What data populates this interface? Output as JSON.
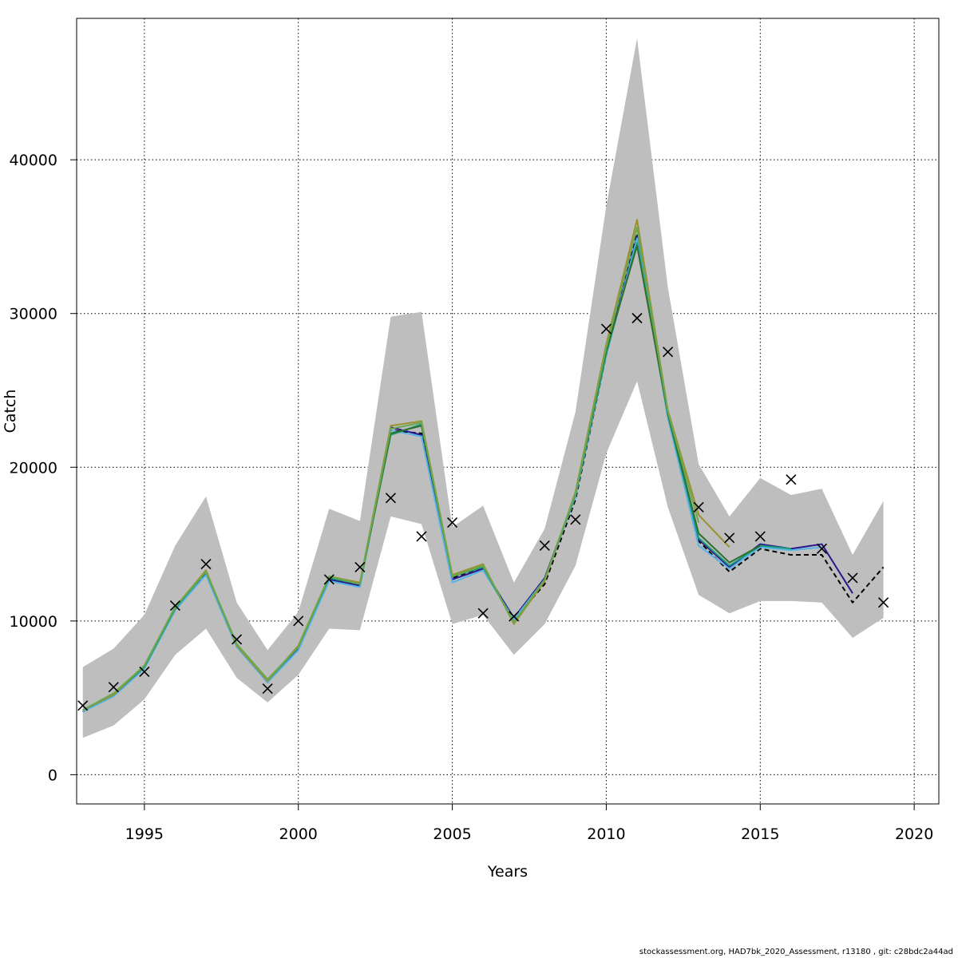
{
  "chart_data": {
    "type": "line",
    "xlabel": "Years",
    "ylabel": "Catch",
    "xlim": [
      1992.8,
      2020.8
    ],
    "ylim": [
      -1900,
      49200
    ],
    "x_ticks": [
      1995,
      2000,
      2005,
      2010,
      2015,
      2020
    ],
    "y_ticks": [
      0,
      10000,
      20000,
      30000,
      40000
    ],
    "x_tick_labels": [
      "1995",
      "2000",
      "2005",
      "2010",
      "2015",
      "2020"
    ],
    "y_tick_labels": [
      "0",
      "10000",
      "20000",
      "30000",
      "40000"
    ],
    "grid": true,
    "confidence_band": {
      "color": "#bebebe",
      "x": [
        1993,
        1994,
        1995,
        1996,
        1997,
        1998,
        1999,
        2000,
        2001,
        2002,
        2003,
        2004,
        2005,
        2006,
        2007,
        2008,
        2009,
        2010,
        2011,
        2012,
        2013,
        2014,
        2015,
        2016,
        2017,
        2018,
        2019
      ],
      "upper": [
        7000,
        8200,
        10400,
        14900,
        18100,
        11200,
        8100,
        10600,
        17300,
        16500,
        29800,
        30100,
        16100,
        17500,
        12500,
        16000,
        23600,
        37000,
        47900,
        31700,
        20200,
        16800,
        19300,
        18200,
        18600,
        14300,
        17800
      ],
      "lower": [
        2400,
        3200,
        4900,
        7800,
        9500,
        6300,
        4700,
        6500,
        9500,
        9400,
        16800,
        16300,
        9800,
        10400,
        7800,
        9800,
        13600,
        20900,
        25600,
        17400,
        11700,
        10500,
        11300,
        11300,
        11200,
        8900,
        10200
      ]
    },
    "observed": {
      "marker": "x",
      "color": "#000000",
      "x": [
        1993,
        1994,
        1995,
        1996,
        1997,
        1998,
        1999,
        2000,
        2001,
        2002,
        2003,
        2004,
        2005,
        2006,
        2007,
        2008,
        2009,
        2010,
        2011,
        2012,
        2013,
        2014,
        2015,
        2016,
        2017,
        2018,
        2019
      ],
      "values": [
        4500,
        5700,
        6700,
        11000,
        13700,
        8800,
        5600,
        10000,
        12700,
        13500,
        18000,
        15500,
        16400,
        10500,
        10300,
        14900,
        16600,
        29000,
        29700,
        27500,
        17400,
        15400,
        15500,
        19200,
        14700,
        12800,
        11200
      ]
    },
    "series": [
      {
        "color": "#000000",
        "dashed": true,
        "x": [
          1993,
          1994,
          1995,
          1996,
          1997,
          1998,
          1999,
          2000,
          2001,
          2002,
          2003,
          2004,
          2005,
          2006,
          2007,
          2008,
          2009,
          2010,
          2011,
          2012,
          2013,
          2014,
          2015,
          2016,
          2017,
          2018,
          2019
        ],
        "values": [
          4100,
          5200,
          7000,
          10700,
          13100,
          8400,
          6100,
          8200,
          12800,
          12300,
          22400,
          22200,
          12800,
          13500,
          10100,
          12400,
          17900,
          27300,
          35200,
          23500,
          15200,
          13200,
          14700,
          14300,
          14300,
          11200,
          13500
        ]
      },
      {
        "color": "#2b1a8e",
        "dashed": false,
        "x": [
          1993,
          1994,
          1995,
          1996,
          1997,
          1998,
          1999,
          2000,
          2001,
          2002,
          2003,
          2004,
          2005,
          2006,
          2007,
          2008,
          2009,
          2010,
          2011,
          2012,
          2013,
          2014,
          2015,
          2016,
          2017,
          2018
        ],
        "values": [
          4100,
          5200,
          7000,
          10800,
          13200,
          8400,
          6000,
          8200,
          12700,
          12300,
          22600,
          22100,
          12700,
          13400,
          10200,
          12800,
          18200,
          27400,
          35000,
          23300,
          15300,
          13500,
          15000,
          14700,
          15000,
          11800
        ]
      },
      {
        "color": "#56b4e9",
        "dashed": false,
        "x": [
          1993,
          1994,
          1995,
          1996,
          1997,
          1998,
          1999,
          2000,
          2001,
          2002,
          2003,
          2004,
          2005,
          2006,
          2007,
          2008,
          2009,
          2010,
          2011,
          2012,
          2013,
          2014,
          2015,
          2016,
          2017
        ],
        "values": [
          4100,
          5100,
          6900,
          10700,
          13000,
          8300,
          6000,
          8100,
          12600,
          12200,
          22400,
          22000,
          12500,
          13300,
          10100,
          12700,
          18100,
          27300,
          34900,
          23200,
          14900,
          13400,
          14800,
          14600,
          14800
        ]
      },
      {
        "color": "#1a9e77",
        "dashed": false,
        "x": [
          1993,
          1994,
          1995,
          1996,
          1997,
          1998,
          1999,
          2000,
          2001,
          2002,
          2003,
          2004,
          2005,
          2006,
          2007,
          2008,
          2009,
          2010,
          2011,
          2012,
          2013,
          2014,
          2015,
          2016
        ],
        "values": [
          4200,
          5200,
          7000,
          10800,
          13200,
          8400,
          6100,
          8300,
          12800,
          12400,
          22100,
          22800,
          12900,
          13500,
          9900,
          12700,
          18200,
          27400,
          34600,
          23400,
          15400,
          13600,
          14900,
          14700
        ]
      },
      {
        "color": "#2e6f2e",
        "dashed": false,
        "x": [
          1993,
          1994,
          1995,
          1996,
          1997,
          1998,
          1999,
          2000,
          2001,
          2002,
          2003,
          2004,
          2005,
          2006,
          2007,
          2008,
          2009,
          2010,
          2011,
          2012,
          2013,
          2014,
          2015
        ],
        "values": [
          4200,
          5200,
          7100,
          10900,
          13200,
          8500,
          6200,
          8300,
          12900,
          12400,
          22200,
          22700,
          12900,
          13600,
          9900,
          12600,
          18300,
          27600,
          34400,
          23500,
          15700,
          13800,
          14900
        ]
      },
      {
        "color": "#9a9130",
        "dashed": false,
        "x": [
          1993,
          1994,
          1995,
          1996,
          1997,
          1998,
          1999,
          2000,
          2001,
          2002,
          2003,
          2004,
          2005,
          2006,
          2007,
          2008,
          2009,
          2010,
          2011,
          2012,
          2013,
          2014
        ],
        "values": [
          4200,
          5200,
          7100,
          10900,
          13300,
          8400,
          6100,
          8400,
          12900,
          12500,
          22700,
          23000,
          13000,
          13700,
          9800,
          12600,
          18400,
          28000,
          36100,
          23700,
          16900,
          14800
        ]
      },
      {
        "color": "#6aa84f",
        "dashed": false,
        "x": [
          1993,
          1994,
          1995,
          1996,
          1997,
          1998,
          1999,
          2000,
          2001,
          2002,
          2003,
          2004,
          2005,
          2006,
          2007,
          2008,
          2009,
          2010,
          2011,
          2012,
          2013
        ],
        "values": [
          4200,
          5300,
          7100,
          10900,
          13200,
          8500,
          6200,
          8300,
          12900,
          12400,
          22500,
          22900,
          12900,
          13600,
          9900,
          12700,
          18300,
          27800,
          35600,
          23600,
          16400
        ]
      }
    ]
  },
  "footer_text": "stockassessment.org, HAD7bk_2020_Assessment, r13180 , git: c28bdc2a44ad"
}
